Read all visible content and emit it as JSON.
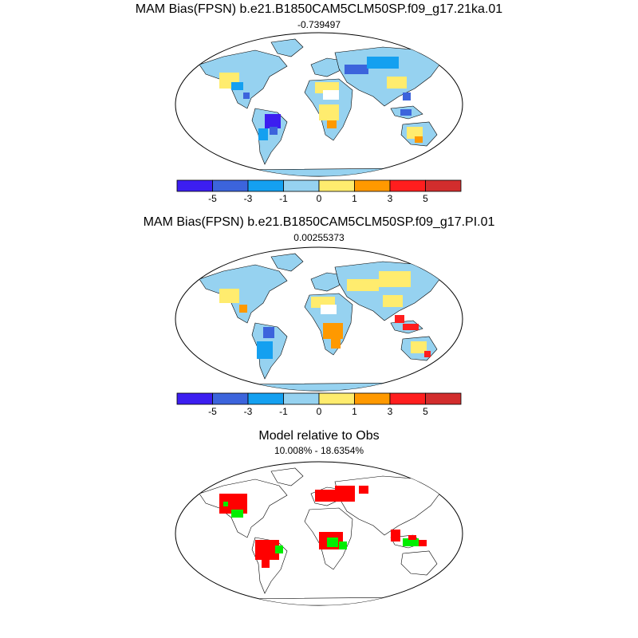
{
  "panels": [
    {
      "title": "MAM Bias(FPSN) b.e21.B1850CAM5CLM50SP.f09_g17.21ka.01",
      "subtitle": "-0.739497"
    },
    {
      "title": "MAM Bias(FPSN) b.e21.B1850CAM5CLM50SP.f09_g17.PI.01",
      "subtitle": "0.00255373"
    },
    {
      "title": "Model relative to Obs",
      "subtitle": "10.008% - 18.6354%"
    }
  ],
  "colorbar": {
    "colors": [
      "#3c1ef0",
      "#3c64dc",
      "#14a0f0",
      "#96d2f0",
      "#ffec6e",
      "#ff9900",
      "#ff1e1e",
      "#d22d2d"
    ],
    "tick_labels": [
      "-5",
      "-3",
      "-1",
      "0",
      "1",
      "3",
      "5"
    ]
  },
  "ratio_colors": {
    "higher": "#ff0000",
    "lower": "#00ee00"
  }
}
